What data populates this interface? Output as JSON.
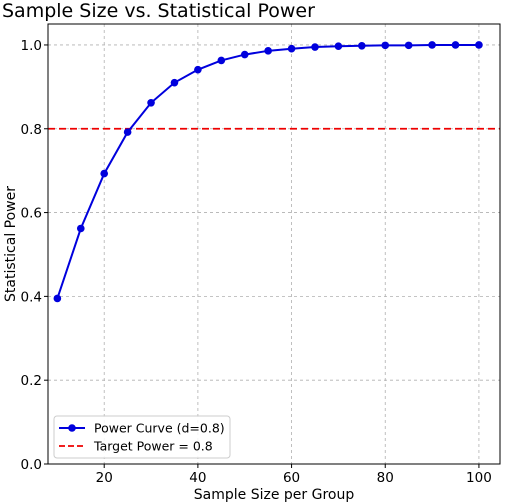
{
  "chart_data": {
    "type": "line",
    "title": "Sample Size vs. Statistical Power",
    "xlabel": "Sample Size per Group",
    "ylabel": "Statistical Power",
    "xlim": [
      8,
      104.5
    ],
    "ylim": [
      0,
      1.05
    ],
    "xticks": [
      20,
      40,
      60,
      80,
      100
    ],
    "yticks": [
      0.0,
      0.2,
      0.4,
      0.6,
      0.8,
      1.0
    ],
    "xtick_labels": [
      "20",
      "40",
      "60",
      "80",
      "100"
    ],
    "ytick_labels": [
      "0.0",
      "0.2",
      "0.4",
      "0.6",
      "0.8",
      "1.0"
    ],
    "grid": true,
    "legend_position": "lower-left",
    "series": [
      {
        "name": "Power Curve (d=0.8)",
        "color": "#0000dd",
        "marker": "circle",
        "x": [
          10,
          15,
          20,
          25,
          30,
          35,
          40,
          45,
          50,
          55,
          60,
          65,
          70,
          75,
          80,
          85,
          90,
          95,
          100
        ],
        "y": [
          0.395,
          0.562,
          0.693,
          0.792,
          0.862,
          0.91,
          0.941,
          0.963,
          0.977,
          0.986,
          0.991,
          0.995,
          0.997,
          0.998,
          0.999,
          0.999,
          1.0,
          1.0,
          1.0
        ]
      }
    ],
    "reference_lines": [
      {
        "name": "Target Power = 0.8",
        "y": 0.8,
        "color": "#ee0000",
        "style": "dashed"
      }
    ]
  }
}
